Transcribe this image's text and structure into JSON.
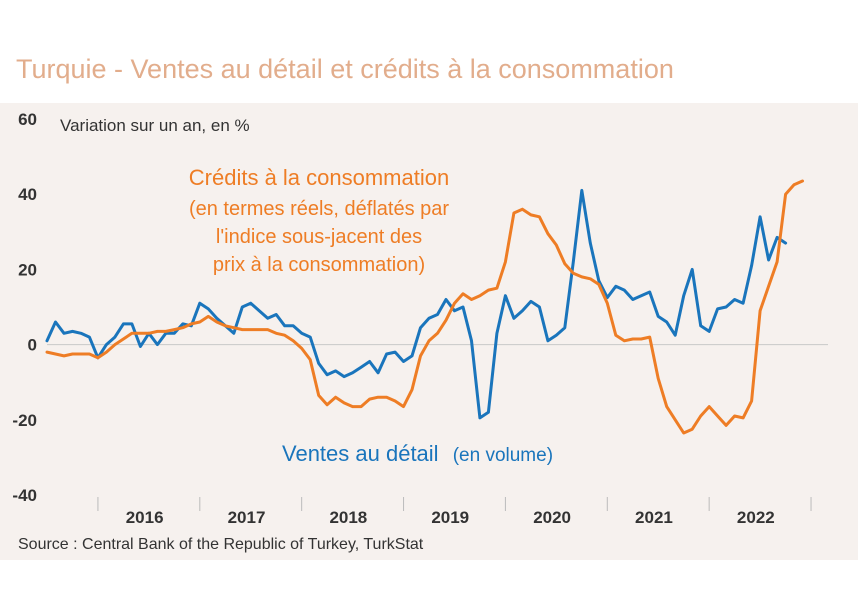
{
  "title": "Turquie - Ventes au détail et crédits à la consommation",
  "source": "Source : Central Bank of the Republic of Turkey, TurkStat",
  "colors": {
    "retail": "#1a75bc",
    "credit": "#ee7d25",
    "title": "#e2ad8c",
    "background": "#f6f1ee"
  },
  "chart_data": {
    "type": "line",
    "title": "Turquie - Ventes au détail et crédits à la consommation",
    "ylabel": "Variation sur un an, en %",
    "ylim": [
      -40,
      60
    ],
    "yticks": [
      "60",
      "40",
      "20",
      "0",
      "-20",
      "-40"
    ],
    "ytick_values": [
      60,
      40,
      20,
      0,
      -20,
      -40
    ],
    "x_range": [
      "2015-07",
      "2023-03"
    ],
    "xtick_labels": [
      "2016",
      "2017",
      "2018",
      "2019",
      "2020",
      "2021",
      "2022"
    ],
    "grid": false,
    "annotations": {
      "credit": [
        "Crédits à la consommation",
        "(en termes réels, déflatés par",
        "l'indice sous-jacent des",
        "prix à la consommation)"
      ],
      "retail_main": "Ventes au détail",
      "retail_sub": "(en volume)"
    },
    "series": [
      {
        "name": "Ventes au détail (en volume)",
        "key": "retail",
        "start": "2015-07",
        "values": [
          1,
          6,
          3,
          3.5,
          3,
          2,
          -3.5,
          0,
          2,
          5.5,
          5.5,
          -0.5,
          3,
          0,
          3,
          3,
          5.5,
          5,
          11,
          9.5,
          7,
          5,
          3,
          10,
          11,
          9,
          7,
          8,
          5,
          5,
          3,
          2,
          -5,
          -8,
          -7,
          -8.5,
          -7.5,
          -6,
          -4.5,
          -7.5,
          -2.5,
          -2,
          -4.5,
          -3,
          4.5,
          7,
          8,
          12,
          9,
          10,
          1,
          -19.5,
          -18,
          3,
          13,
          7,
          9,
          11.5,
          10,
          1,
          2.5,
          4.5,
          22,
          41,
          27,
          17,
          12.5,
          15.5,
          14.5,
          12,
          13,
          14,
          7.5,
          6,
          2.5,
          13,
          20,
          5,
          3.5,
          9.5,
          10,
          12,
          11,
          21,
          34,
          22.5,
          28.5,
          27
        ]
      },
      {
        "name": "Crédits à la consommation",
        "key": "credit",
        "start": "2015-07",
        "values": [
          -2,
          -2.5,
          -3,
          -2.5,
          -2.5,
          -2.5,
          -3.5,
          -2,
          0,
          1.5,
          3,
          3,
          3,
          3.5,
          3.5,
          4,
          4.5,
          5.5,
          6,
          7.5,
          6,
          5,
          4.5,
          4,
          4,
          4,
          4,
          3,
          2.5,
          1,
          -1,
          -4,
          -13.5,
          -16,
          -14,
          -15.5,
          -16.5,
          -16.5,
          -14.5,
          -14,
          -14,
          -15,
          -16.5,
          -12,
          -3,
          1,
          3,
          6.5,
          11,
          13.5,
          12,
          13,
          14.5,
          15,
          22,
          35,
          36,
          34.5,
          34,
          29.5,
          26.5,
          21.5,
          19,
          18,
          17.5,
          16,
          11,
          2.5,
          1,
          1.5,
          1.5,
          2,
          -9,
          -16.5,
          -20,
          -23.5,
          -22.5,
          -19,
          -16.5,
          -19,
          -21.5,
          -19,
          -19.5,
          -15,
          9,
          15.5,
          22,
          40,
          42.5,
          43.5
        ]
      }
    ]
  }
}
